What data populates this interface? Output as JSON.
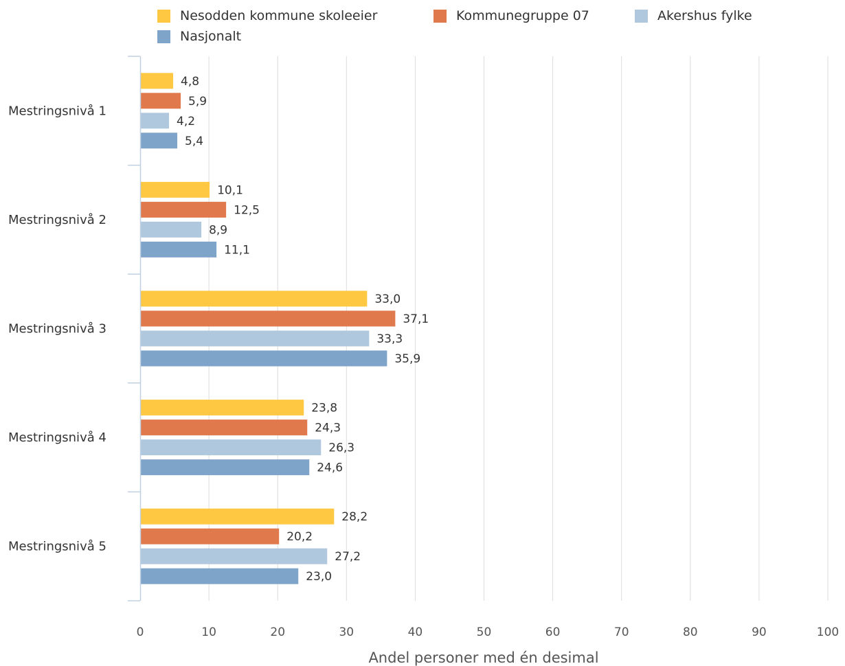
{
  "chart_data": {
    "type": "bar",
    "orientation": "horizontal",
    "title": "",
    "xlabel": "Andel personer med én desimal",
    "ylabel": "",
    "xlim": [
      0,
      100
    ],
    "x_ticks": [
      "0",
      "10",
      "20",
      "30",
      "40",
      "50",
      "60",
      "70",
      "80",
      "90",
      "100"
    ],
    "grid": true,
    "legend_position": "top",
    "categories": [
      "Mestringsnivå 1",
      "Mestringsnivå 2",
      "Mestringsnivå 3",
      "Mestringsnivå 4",
      "Mestringsnivå 5"
    ],
    "series": [
      {
        "name": "Nesodden kommune skoleeier",
        "color": "#fec843",
        "values": [
          4.8,
          10.1,
          33.0,
          23.8,
          28.2
        ],
        "labels": [
          "4,8",
          "10,1",
          "33,0",
          "23,8",
          "28,2"
        ]
      },
      {
        "name": "Kommunegruppe 07",
        "color": "#e0794c",
        "values": [
          5.9,
          12.5,
          37.1,
          24.3,
          20.2
        ],
        "labels": [
          "5,9",
          "12,5",
          "37,1",
          "24,3",
          "20,2"
        ]
      },
      {
        "name": "Akershus fylke",
        "color": "#b0c8de",
        "values": [
          4.2,
          8.9,
          33.3,
          26.3,
          27.2
        ],
        "labels": [
          "4,2",
          "8,9",
          "33,3",
          "26,3",
          "27,2"
        ]
      },
      {
        "name": "Nasjonalt",
        "color": "#7ea4c9",
        "values": [
          5.4,
          11.1,
          35.9,
          24.6,
          23.0
        ],
        "labels": [
          "5,4",
          "11,1",
          "35,9",
          "24,6",
          "23,0"
        ]
      }
    ]
  }
}
